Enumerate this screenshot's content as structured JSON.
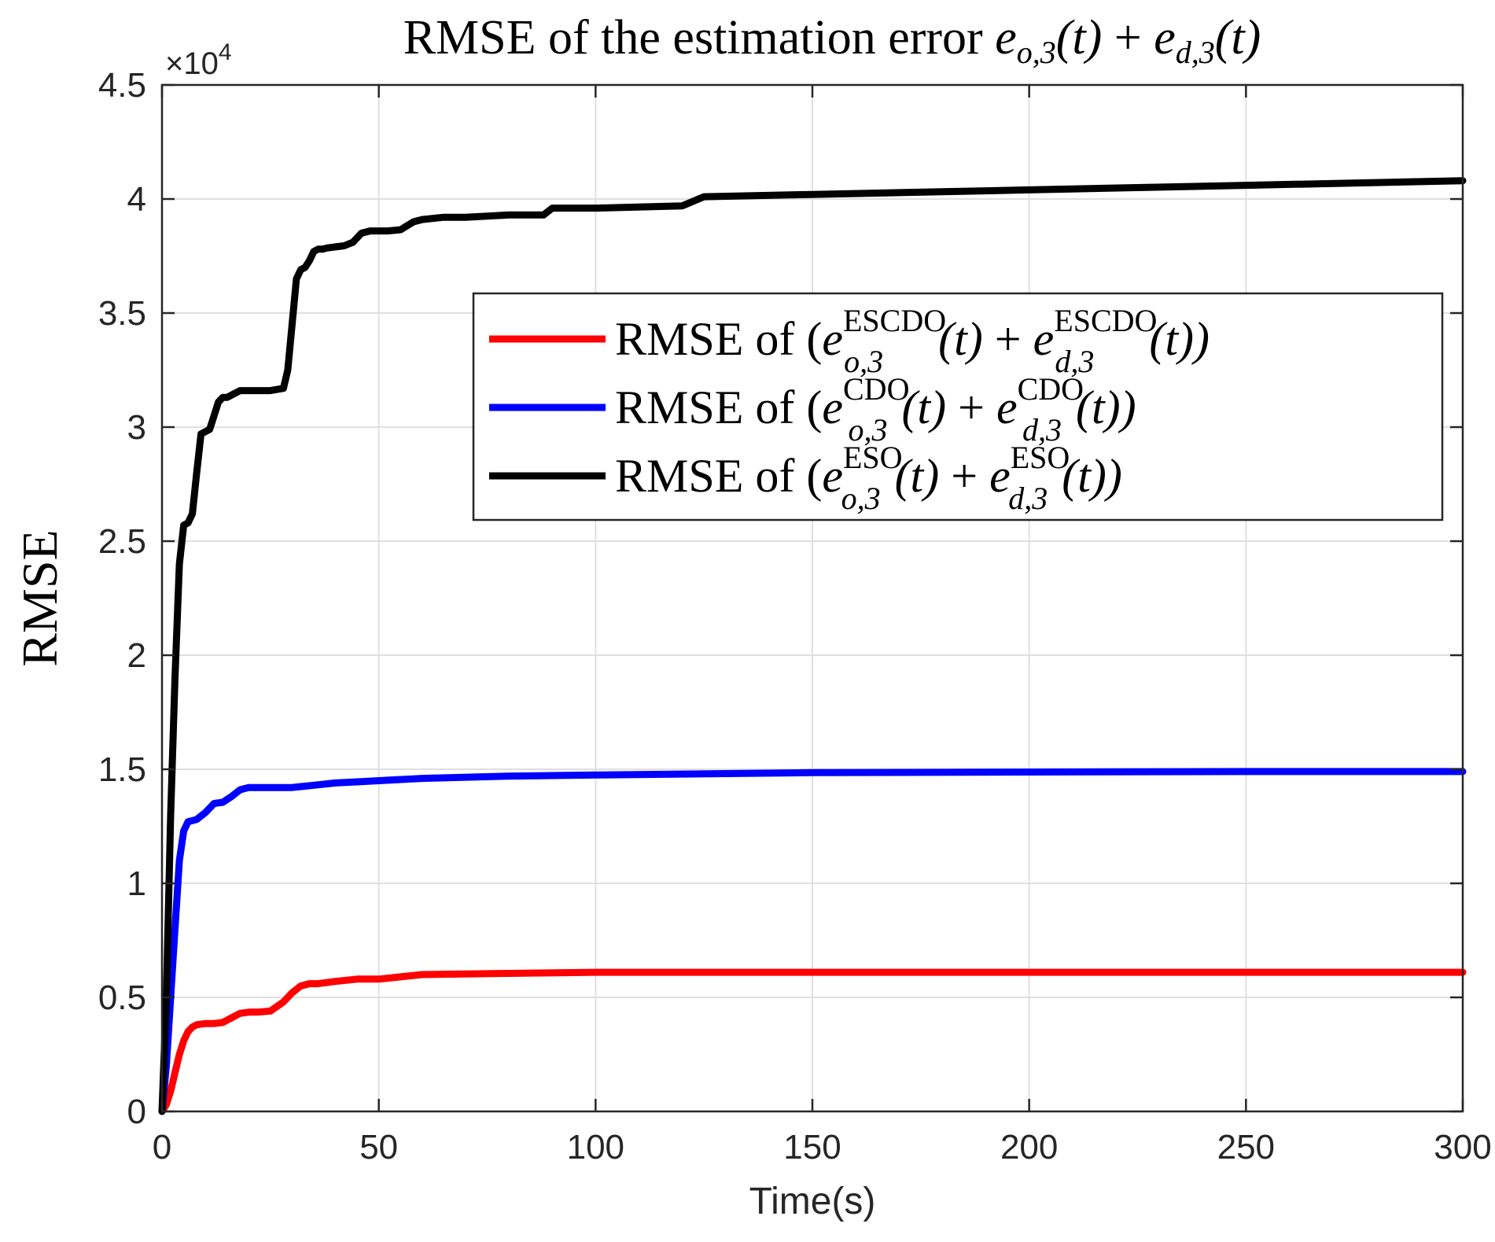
{
  "chart_data": {
    "type": "line",
    "title": {
      "prefix": "RMSE of the estimation error ",
      "term1": {
        "base": "e",
        "sub": "o,3",
        "arg": "(t)"
      },
      "op": " + ",
      "term2": {
        "base": "e",
        "sub": "d,3",
        "arg": "(t)"
      }
    },
    "xlabel": "Time(s)",
    "ylabel": "RMSE",
    "xlim": [
      0,
      300
    ],
    "ylim": [
      0,
      45000
    ],
    "y_exponent_label": "×10",
    "y_exponent_power": "4",
    "grid": true,
    "legend_position": "upper-right",
    "x_ticks": [
      0,
      50,
      100,
      150,
      200,
      250,
      300
    ],
    "x_tick_labels": [
      "0",
      "50",
      "100",
      "150",
      "200",
      "250",
      "300"
    ],
    "y_ticks": [
      0,
      5000,
      10000,
      15000,
      20000,
      25000,
      30000,
      35000,
      40000,
      45000
    ],
    "y_tick_labels": [
      "0",
      "0.5",
      "1",
      "1.5",
      "2",
      "2.5",
      "3",
      "3.5",
      "4",
      "4.5"
    ],
    "series": [
      {
        "name": "RMSE of (e_{o,3}^{ESCDO}(t) + e_{d,3}^{ESCDO}(t))",
        "legend": {
          "prefix": "RMSE of (",
          "sup": "ESCDO",
          "sub1": "o,3",
          "sub2": "d,3"
        },
        "color": "#ff0000",
        "x": [
          0,
          1,
          2,
          3,
          4,
          5,
          6,
          7,
          8,
          10,
          12,
          14,
          16,
          18,
          20,
          22,
          25,
          28,
          30,
          32,
          34,
          36,
          40,
          45,
          50,
          55,
          60,
          80,
          100,
          150,
          200,
          250,
          300
        ],
        "y": [
          0,
          300,
          900,
          1700,
          2500,
          3100,
          3500,
          3700,
          3800,
          3850,
          3850,
          3900,
          4100,
          4300,
          4350,
          4350,
          4400,
          4800,
          5200,
          5500,
          5600,
          5600,
          5700,
          5800,
          5800,
          5900,
          6000,
          6050,
          6100,
          6100,
          6100,
          6100,
          6100
        ]
      },
      {
        "name": "RMSE of (e_{o,3}^{CDO}(t) + e_{d,3}^{CDO}(t))",
        "legend": {
          "prefix": "RMSE of (",
          "sup": "CDO",
          "sub1": "o,3",
          "sub2": "d,3"
        },
        "color": "#0000ff",
        "x": [
          0,
          1,
          2,
          3,
          4,
          5,
          6,
          7,
          8,
          10,
          12,
          14,
          16,
          18,
          20,
          25,
          30,
          35,
          40,
          45,
          50,
          60,
          80,
          100,
          150,
          200,
          250,
          300
        ],
        "y": [
          0,
          2000,
          5000,
          8000,
          11000,
          12300,
          12700,
          12750,
          12800,
          13100,
          13500,
          13550,
          13800,
          14100,
          14200,
          14200,
          14200,
          14300,
          14400,
          14450,
          14500,
          14600,
          14700,
          14750,
          14850,
          14880,
          14900,
          14900
        ]
      },
      {
        "name": "RMSE of (e_{o,3}^{ESO}(t) + e_{d,3}^{ESO}(t))",
        "legend": {
          "prefix": "RMSE of (",
          "sup": "ESO",
          "sub1": "o,3",
          "sub2": "d,3"
        },
        "color": "#000000",
        "x": [
          0,
          1,
          2,
          3,
          4,
          5,
          6,
          7,
          8,
          9,
          10,
          11,
          12,
          13,
          14,
          15,
          16,
          18,
          20,
          22,
          25,
          28,
          29,
          30,
          31,
          32,
          33,
          34,
          35,
          36,
          37,
          38,
          40,
          42,
          44,
          46,
          48,
          50,
          52,
          55,
          58,
          60,
          65,
          70,
          80,
          88,
          90,
          100,
          120,
          125,
          150,
          200,
          250,
          300
        ],
        "y": [
          0,
          5000,
          13000,
          19000,
          24000,
          25700,
          25800,
          26200,
          28000,
          29700,
          29800,
          29900,
          30500,
          31100,
          31300,
          31300,
          31400,
          31600,
          31600,
          31600,
          31600,
          31700,
          32500,
          34500,
          36500,
          36900,
          37000,
          37300,
          37700,
          37800,
          37800,
          37850,
          37900,
          37950,
          38100,
          38500,
          38600,
          38600,
          38600,
          38650,
          39000,
          39100,
          39200,
          39200,
          39300,
          39300,
          39600,
          39600,
          39700,
          40100,
          40200,
          40400,
          40600,
          40800
        ]
      }
    ]
  }
}
